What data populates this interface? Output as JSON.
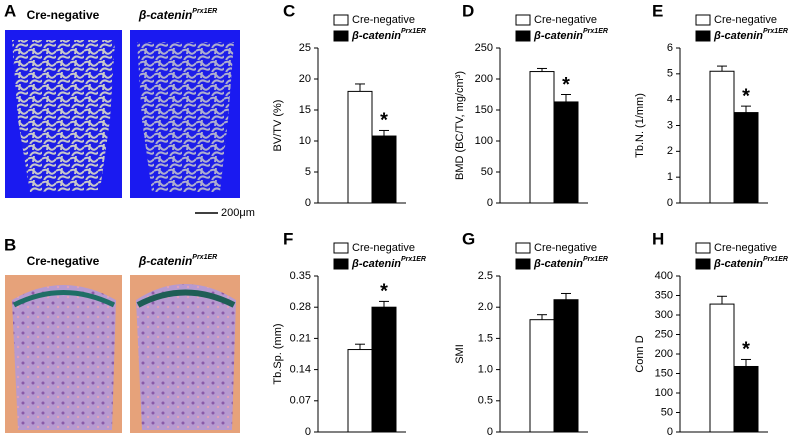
{
  "images": [
    {
      "label": "A",
      "captions": [
        {
          "text": "Cre-negative"
        },
        {
          "text": "β-catenin",
          "sup": "Prx1ER"
        }
      ],
      "scale_bar": "200μm"
    },
    {
      "label": "B",
      "captions": [
        {
          "text": "Cre-negative"
        },
        {
          "text": "β-catenin",
          "sup": "Prx1ER"
        }
      ]
    }
  ],
  "chart_data": [
    {
      "type": "bar",
      "panel": "C",
      "ylabel": "BV/TV (%)",
      "ylim": [
        0,
        25
      ],
      "yticks": [
        0,
        5,
        10,
        15,
        20,
        25
      ],
      "annotation": "*",
      "series": [
        {
          "name": "Cre-negative",
          "color": "#ffffff",
          "values": [
            18
          ],
          "errors": [
            1.2
          ]
        },
        {
          "name": "β-catenin",
          "name_sup": "Prx1ER",
          "color": "#000000",
          "values": [
            10.8
          ],
          "errors": [
            0.9
          ]
        }
      ]
    },
    {
      "type": "bar",
      "panel": "D",
      "ylabel": "BMD (BC/TV, mg/cm³)",
      "ylim": [
        0,
        250
      ],
      "yticks": [
        0,
        50,
        100,
        150,
        200,
        250
      ],
      "annotation": "*",
      "series": [
        {
          "name": "Cre-negative",
          "color": "#ffffff",
          "values": [
            212
          ],
          "errors": [
            5
          ]
        },
        {
          "name": "β-catenin",
          "name_sup": "Prx1ER",
          "color": "#000000",
          "values": [
            163
          ],
          "errors": [
            12
          ]
        }
      ]
    },
    {
      "type": "bar",
      "panel": "E",
      "ylabel": "Tb.N. (1/mm)",
      "ylim": [
        0,
        6
      ],
      "yticks": [
        0,
        1,
        2,
        3,
        4,
        5,
        6
      ],
      "annotation": "*",
      "series": [
        {
          "name": "Cre-negative",
          "color": "#ffffff",
          "values": [
            5.1
          ],
          "errors": [
            0.2
          ]
        },
        {
          "name": "β-catenin",
          "name_sup": "Prx1ER",
          "color": "#000000",
          "values": [
            3.5
          ],
          "errors": [
            0.25
          ]
        }
      ]
    },
    {
      "type": "bar",
      "panel": "F",
      "ylabel": "Tb.Sp. (mm)",
      "ylim": [
        0,
        0.35
      ],
      "yticks": [
        0,
        0.07,
        0.14,
        0.21,
        0.28,
        0.35
      ],
      "annotation": "*",
      "series": [
        {
          "name": "Cre-negative",
          "color": "#ffffff",
          "values": [
            0.185
          ],
          "errors": [
            0.012
          ]
        },
        {
          "name": "β-catenin",
          "name_sup": "Prx1ER",
          "color": "#000000",
          "values": [
            0.28
          ],
          "errors": [
            0.013
          ]
        }
      ]
    },
    {
      "type": "bar",
      "panel": "G",
      "ylabel": "SMI",
      "ylim": [
        0,
        2.5
      ],
      "yticks": [
        0,
        0.5,
        {
          "value": 1,
          "label": "1.0"
        },
        1.5,
        {
          "value": 2,
          "label": "2.0"
        },
        2.5
      ],
      "series": [
        {
          "name": "Cre-negative",
          "color": "#ffffff",
          "values": [
            1.8
          ],
          "errors": [
            0.08
          ]
        },
        {
          "name": "β-catenin",
          "name_sup": "Prx1ER",
          "color": "#000000",
          "values": [
            2.12
          ],
          "errors": [
            0.1
          ]
        }
      ]
    },
    {
      "type": "bar",
      "panel": "H",
      "ylabel": "Conn D",
      "ylim": [
        0,
        400
      ],
      "yticks": [
        0,
        50,
        100,
        150,
        200,
        250,
        300,
        350,
        400
      ],
      "annotation": "*",
      "series": [
        {
          "name": "Cre-negative",
          "color": "#ffffff",
          "values": [
            328
          ],
          "errors": [
            20
          ]
        },
        {
          "name": "β-catenin",
          "name_sup": "Prx1ER",
          "color": "#000000",
          "values": [
            168
          ],
          "errors": [
            18
          ]
        }
      ]
    }
  ]
}
